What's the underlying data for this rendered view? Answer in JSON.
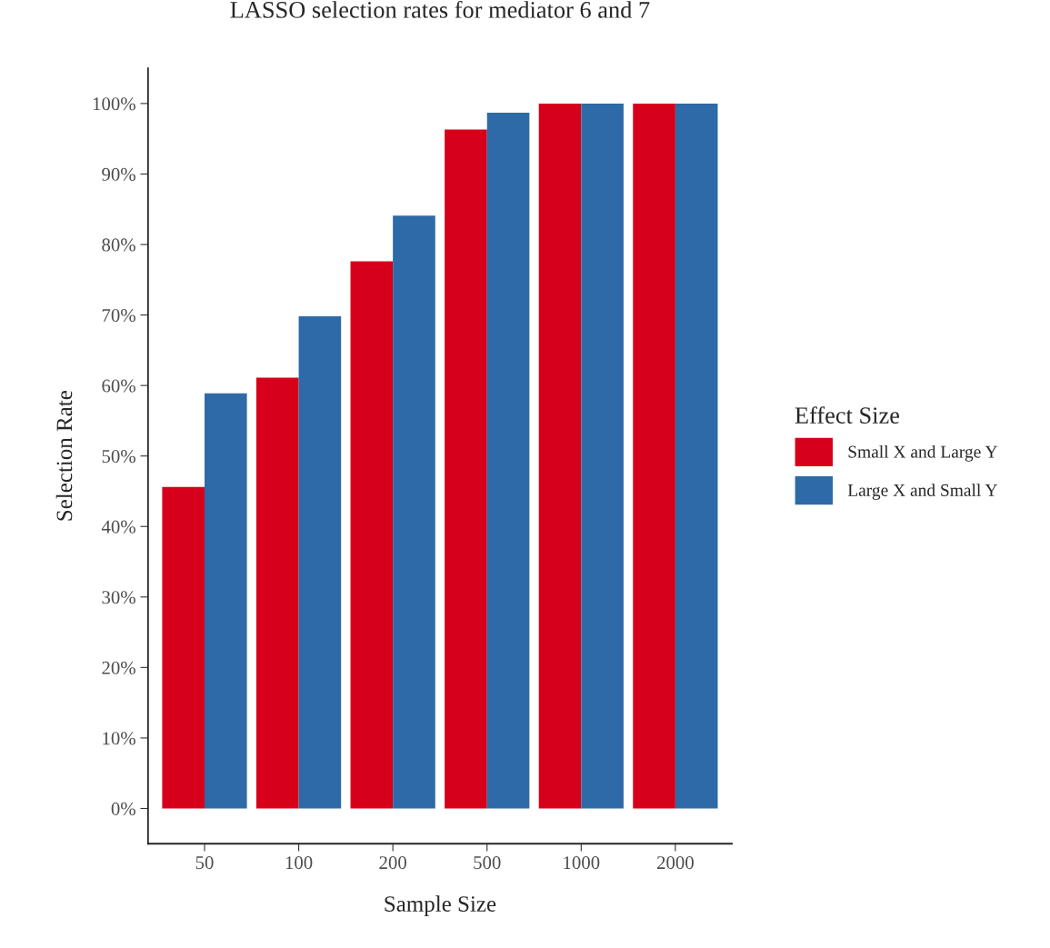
{
  "chart_data": {
    "type": "bar",
    "title": "LASSO selection rates for mediator 6 and 7",
    "xlabel": "Sample Size",
    "ylabel": "Selection Rate",
    "legend_title": "Effect Size",
    "categories": [
      "50",
      "100",
      "200",
      "500",
      "1000",
      "2000"
    ],
    "series": [
      {
        "name": "Small X and Large Y",
        "color": "#d7001a",
        "values": [
          45.6,
          61.1,
          77.6,
          96.3,
          100,
          100
        ]
      },
      {
        "name": "Large X and Small Y",
        "color": "#2e6aa7",
        "values": [
          58.9,
          69.8,
          84.1,
          98.7,
          100,
          100
        ]
      }
    ],
    "ylim": [
      -5,
      105
    ],
    "yticks": [
      {
        "value": 0,
        "label": "0%"
      },
      {
        "value": 10,
        "label": "10%"
      },
      {
        "value": 20,
        "label": "20%"
      },
      {
        "value": 30,
        "label": "30%"
      },
      {
        "value": 40,
        "label": "40%"
      },
      {
        "value": 50,
        "label": "50%"
      },
      {
        "value": 60,
        "label": "60%"
      },
      {
        "value": 70,
        "label": "70%"
      },
      {
        "value": 80,
        "label": "80%"
      },
      {
        "value": 90,
        "label": "90%"
      },
      {
        "value": 100,
        "label": "100%"
      }
    ],
    "grid": false,
    "legend": "right"
  }
}
